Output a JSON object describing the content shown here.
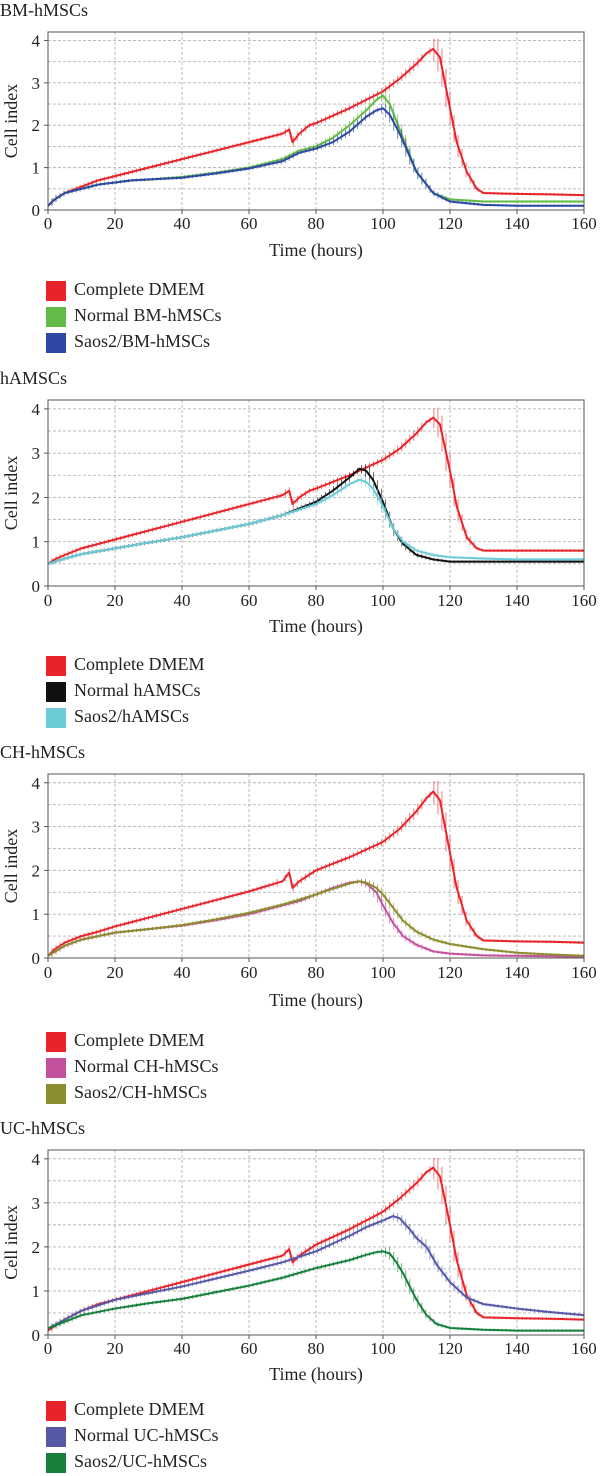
{
  "chart_data": [
    {
      "type": "line",
      "title": "BM-hMSCs",
      "xlabel": "Time (hours)",
      "ylabel": "Cell index",
      "xlim": [
        0,
        160
      ],
      "ylim": [
        0,
        4.2
      ],
      "xticks": [
        0,
        20,
        40,
        60,
        80,
        100,
        120,
        140,
        160
      ],
      "yticks": [
        0,
        1,
        2,
        3,
        4
      ],
      "grid": true,
      "legend_position": "below",
      "series": [
        {
          "name": "Complete DMEM",
          "color": "#e8242a",
          "x": [
            0,
            2,
            5,
            10,
            15,
            20,
            30,
            40,
            50,
            60,
            70,
            72,
            73,
            75,
            78,
            80,
            90,
            100,
            105,
            110,
            113,
            115,
            117,
            118,
            120,
            122,
            125,
            128,
            130,
            140,
            150,
            160
          ],
          "y": [
            0.1,
            0.25,
            0.4,
            0.55,
            0.7,
            0.8,
            1.0,
            1.2,
            1.4,
            1.6,
            1.8,
            1.9,
            1.6,
            1.8,
            2.0,
            2.05,
            2.4,
            2.8,
            3.1,
            3.45,
            3.7,
            3.8,
            3.6,
            3.2,
            2.4,
            1.6,
            0.9,
            0.5,
            0.4,
            0.38,
            0.37,
            0.35
          ]
        },
        {
          "name": "Normal BM-hMSCs",
          "color": "#62bb46",
          "x": [
            0,
            2,
            5,
            10,
            15,
            20,
            25,
            30,
            40,
            50,
            60,
            70,
            75,
            80,
            85,
            90,
            95,
            98,
            100,
            102,
            105,
            110,
            115,
            120,
            130,
            140,
            150,
            160
          ],
          "y": [
            0.1,
            0.25,
            0.4,
            0.5,
            0.6,
            0.65,
            0.7,
            0.72,
            0.78,
            0.88,
            1.0,
            1.2,
            1.4,
            1.5,
            1.7,
            2.0,
            2.35,
            2.6,
            2.7,
            2.5,
            1.9,
            0.9,
            0.4,
            0.25,
            0.2,
            0.2,
            0.2,
            0.2
          ]
        },
        {
          "name": "Saos2/BM-hMSCs",
          "color": "#2e48a3",
          "x": [
            0,
            2,
            5,
            10,
            15,
            20,
            25,
            30,
            40,
            50,
            60,
            70,
            75,
            80,
            85,
            90,
            95,
            98,
            100,
            102,
            105,
            110,
            115,
            120,
            130,
            140,
            150,
            160
          ],
          "y": [
            0.1,
            0.25,
            0.4,
            0.5,
            0.6,
            0.65,
            0.7,
            0.72,
            0.76,
            0.86,
            0.98,
            1.15,
            1.35,
            1.45,
            1.6,
            1.85,
            2.2,
            2.35,
            2.4,
            2.25,
            1.8,
            0.9,
            0.4,
            0.2,
            0.12,
            0.1,
            0.1,
            0.1
          ]
        }
      ]
    },
    {
      "type": "line",
      "title": "hAMSCs",
      "xlabel": "Time (hours)",
      "ylabel": "Cell index",
      "xlim": [
        0,
        160
      ],
      "ylim": [
        0,
        4.2
      ],
      "xticks": [
        0,
        20,
        40,
        60,
        80,
        100,
        120,
        140,
        160
      ],
      "yticks": [
        0,
        1,
        2,
        3,
        4
      ],
      "grid": true,
      "legend_position": "below",
      "series": [
        {
          "name": "Complete DMEM",
          "color": "#e8242a",
          "x": [
            0,
            2,
            5,
            10,
            15,
            20,
            30,
            40,
            50,
            60,
            70,
            72,
            73,
            75,
            78,
            80,
            90,
            100,
            105,
            110,
            113,
            115,
            117,
            118,
            120,
            122,
            125,
            128,
            130,
            140,
            150,
            160
          ],
          "y": [
            0.5,
            0.6,
            0.7,
            0.85,
            0.95,
            1.05,
            1.25,
            1.45,
            1.65,
            1.85,
            2.05,
            2.15,
            1.85,
            2.0,
            2.15,
            2.2,
            2.5,
            2.85,
            3.1,
            3.45,
            3.7,
            3.8,
            3.65,
            3.3,
            2.6,
            1.8,
            1.1,
            0.85,
            0.8,
            0.8,
            0.8,
            0.8
          ]
        },
        {
          "name": "Normal hAMSCs",
          "color": "#111111",
          "x": [
            0,
            5,
            10,
            20,
            30,
            40,
            50,
            60,
            70,
            80,
            85,
            90,
            93,
            95,
            97,
            100,
            103,
            106,
            110,
            115,
            120,
            130,
            140,
            150,
            160
          ],
          "y": [
            0.5,
            0.62,
            0.72,
            0.85,
            0.98,
            1.1,
            1.25,
            1.4,
            1.6,
            1.9,
            2.15,
            2.45,
            2.65,
            2.6,
            2.4,
            1.9,
            1.3,
            0.95,
            0.7,
            0.6,
            0.55,
            0.55,
            0.55,
            0.55,
            0.55
          ]
        },
        {
          "name": "Saos2/hAMSCs",
          "color": "#6dcbd8",
          "x": [
            0,
            5,
            10,
            20,
            30,
            40,
            50,
            60,
            70,
            80,
            85,
            90,
            93,
            95,
            97,
            100,
            103,
            106,
            110,
            115,
            120,
            130,
            140,
            150,
            160
          ],
          "y": [
            0.5,
            0.62,
            0.72,
            0.85,
            0.98,
            1.1,
            1.25,
            1.4,
            1.6,
            1.85,
            2.05,
            2.3,
            2.4,
            2.35,
            2.2,
            1.8,
            1.3,
            1.0,
            0.8,
            0.7,
            0.65,
            0.62,
            0.6,
            0.6,
            0.6
          ]
        }
      ]
    },
    {
      "type": "line",
      "title": "CH-hMSCs",
      "xlabel": "Time (hours)",
      "ylabel": "Cell index",
      "xlim": [
        0,
        160
      ],
      "ylim": [
        0,
        4.2
      ],
      "xticks": [
        0,
        20,
        40,
        60,
        80,
        100,
        120,
        140,
        160
      ],
      "yticks": [
        0,
        1,
        2,
        3,
        4
      ],
      "grid": true,
      "legend_position": "below",
      "series": [
        {
          "name": "Complete DMEM",
          "color": "#e8242a",
          "x": [
            0,
            2,
            5,
            10,
            15,
            20,
            30,
            40,
            50,
            60,
            70,
            72,
            73,
            75,
            78,
            80,
            90,
            100,
            105,
            110,
            113,
            115,
            117,
            118,
            120,
            122,
            125,
            128,
            130,
            140,
            150,
            160
          ],
          "y": [
            0.05,
            0.2,
            0.35,
            0.5,
            0.6,
            0.72,
            0.92,
            1.12,
            1.32,
            1.52,
            1.75,
            1.95,
            1.6,
            1.75,
            1.9,
            2.0,
            2.3,
            2.65,
            2.95,
            3.35,
            3.65,
            3.8,
            3.6,
            3.2,
            2.4,
            1.6,
            0.85,
            0.5,
            0.4,
            0.38,
            0.37,
            0.35
          ]
        },
        {
          "name": "Normal CH-hMSCs",
          "color": "#c4509e",
          "x": [
            0,
            5,
            10,
            20,
            30,
            40,
            50,
            60,
            70,
            75,
            80,
            85,
            90,
            93,
            95,
            98,
            100,
            103,
            106,
            110,
            115,
            120,
            130,
            140,
            150,
            160
          ],
          "y": [
            0.05,
            0.28,
            0.42,
            0.58,
            0.66,
            0.74,
            0.86,
            1.0,
            1.2,
            1.3,
            1.45,
            1.6,
            1.72,
            1.75,
            1.7,
            1.5,
            1.2,
            0.8,
            0.5,
            0.3,
            0.15,
            0.1,
            0.06,
            0.05,
            0.04,
            0.03
          ]
        },
        {
          "name": "Saos2/CH-hMSCs",
          "color": "#8b8d2e",
          "x": [
            0,
            5,
            10,
            20,
            30,
            40,
            50,
            60,
            70,
            75,
            80,
            85,
            90,
            93,
            95,
            98,
            100,
            103,
            106,
            110,
            115,
            120,
            130,
            140,
            150,
            160
          ],
          "y": [
            0.05,
            0.28,
            0.42,
            0.58,
            0.66,
            0.75,
            0.88,
            1.03,
            1.22,
            1.33,
            1.45,
            1.58,
            1.7,
            1.75,
            1.72,
            1.6,
            1.45,
            1.15,
            0.85,
            0.6,
            0.42,
            0.32,
            0.2,
            0.12,
            0.08,
            0.05
          ]
        }
      ]
    },
    {
      "type": "line",
      "title": "UC-hMSCs",
      "xlabel": "Time (hours)",
      "ylabel": "Cell index",
      "xlim": [
        0,
        160
      ],
      "ylim": [
        0,
        4.2
      ],
      "xticks": [
        0,
        20,
        40,
        60,
        80,
        100,
        120,
        140,
        160
      ],
      "yticks": [
        0,
        1,
        2,
        3,
        4
      ],
      "grid": true,
      "legend_position": "below",
      "series": [
        {
          "name": "Complete DMEM",
          "color": "#e8242a",
          "x": [
            0,
            2,
            5,
            10,
            15,
            20,
            30,
            40,
            50,
            60,
            70,
            72,
            73,
            75,
            78,
            80,
            90,
            100,
            105,
            110,
            113,
            115,
            117,
            118,
            120,
            122,
            125,
            128,
            130,
            140,
            150,
            160
          ],
          "y": [
            0.1,
            0.2,
            0.35,
            0.55,
            0.7,
            0.8,
            1.0,
            1.2,
            1.4,
            1.6,
            1.8,
            1.95,
            1.65,
            1.8,
            1.95,
            2.05,
            2.4,
            2.8,
            3.1,
            3.45,
            3.7,
            3.8,
            3.6,
            3.25,
            2.5,
            1.7,
            0.9,
            0.5,
            0.4,
            0.38,
            0.37,
            0.35
          ]
        },
        {
          "name": "Normal UC-hMSCs",
          "color": "#5559a8",
          "x": [
            0,
            5,
            10,
            20,
            30,
            40,
            50,
            60,
            70,
            80,
            90,
            95,
            100,
            103,
            105,
            108,
            110,
            113,
            116,
            120,
            125,
            130,
            140,
            150,
            160
          ],
          "y": [
            0.15,
            0.35,
            0.55,
            0.8,
            0.95,
            1.1,
            1.28,
            1.46,
            1.65,
            1.9,
            2.25,
            2.45,
            2.6,
            2.7,
            2.65,
            2.4,
            2.2,
            2.0,
            1.6,
            1.2,
            0.85,
            0.7,
            0.6,
            0.52,
            0.45
          ]
        },
        {
          "name": "Saos2/UC-hMSCs",
          "color": "#17813c",
          "x": [
            0,
            5,
            10,
            20,
            30,
            40,
            50,
            60,
            70,
            80,
            90,
            95,
            98,
            100,
            102,
            104,
            106,
            108,
            110,
            113,
            116,
            120,
            130,
            140,
            150,
            160
          ],
          "y": [
            0.15,
            0.3,
            0.45,
            0.6,
            0.72,
            0.82,
            0.97,
            1.12,
            1.3,
            1.52,
            1.7,
            1.82,
            1.88,
            1.9,
            1.85,
            1.65,
            1.4,
            1.1,
            0.8,
            0.45,
            0.25,
            0.16,
            0.12,
            0.1,
            0.1,
            0.1
          ]
        }
      ]
    }
  ]
}
